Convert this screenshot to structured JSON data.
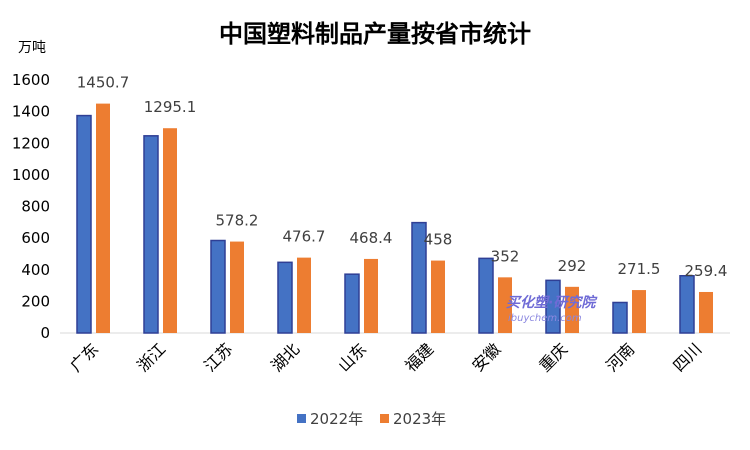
{
  "chart_data": {
    "type": "bar",
    "title": "中国塑料制品产量按省市统计",
    "ylabel": "万吨",
    "xlabel": "",
    "ylim": [
      0,
      1600
    ],
    "yticks": [
      "0",
      "200",
      "400",
      "600",
      "800",
      "1000",
      "1200",
      "1400",
      "1600"
    ],
    "grid": false,
    "legend_position": "bottom",
    "categories": [
      "广东",
      "浙江",
      "江苏",
      "湖北",
      "山东",
      "福建",
      "安徽",
      "重庆",
      "河南",
      "四川"
    ],
    "series": [
      {
        "name": "2022年",
        "color": "#4472c4",
        "values": [
          1375,
          1247,
          585,
          447,
          372,
          698,
          472,
          333,
          193,
          362
        ]
      },
      {
        "name": "2023年",
        "color": "#ed7d31",
        "values": [
          1450.7,
          1295.1,
          578.2,
          476.7,
          468.4,
          458,
          352,
          292,
          271.5,
          259.4
        ]
      }
    ],
    "data_labels": [
      "1450.7",
      "1295.1",
      "578.2",
      "476.7",
      "468.4",
      "458",
      "352",
      "292",
      "271.5",
      "259.4"
    ]
  },
  "watermark": {
    "line1": "买化塑·研究院",
    "line2": "ibuychem.com"
  }
}
